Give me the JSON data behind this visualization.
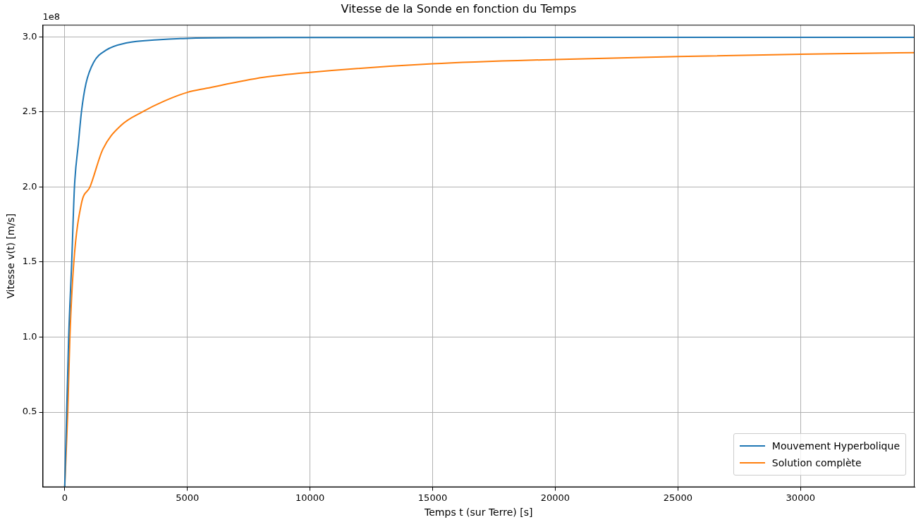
{
  "chart_data": {
    "type": "line",
    "title": "Vitesse de la Sonde en fonction du Temps",
    "xlabel": "Temps t (sur Terre) [s]",
    "ylabel": "Vitesse v(t) [m/s]",
    "annotations": [
      "1e8"
    ],
    "series": [
      {
        "name": "Mouvement Hyperbolique",
        "color": "#1f77b4",
        "x": [
          0,
          161,
          285,
          397,
          558,
          682,
          868,
          1179,
          1675,
          2543,
          3784,
          5000,
          7500,
          10000,
          20000,
          34650
        ],
        "values": [
          0,
          1.0,
          1.5,
          2.0,
          2.29,
          2.5,
          2.69,
          2.83,
          2.91,
          2.96,
          2.98,
          2.99,
          2.994,
          2.995,
          2.996,
          2.996
        ]
      },
      {
        "name": "Solution complète",
        "color": "#ff7f0e",
        "x": [
          0,
          124,
          211,
          372,
          682,
          1030,
          1551,
          2295,
          3164,
          4032,
          5000,
          5780,
          8102,
          10000,
          15000,
          20000,
          25000,
          30000,
          34650
        ],
        "values": [
          0,
          0.5,
          1.0,
          1.5,
          1.89,
          2.0,
          2.25,
          2.41,
          2.5,
          2.57,
          2.63,
          2.657,
          2.73,
          2.763,
          2.82,
          2.849,
          2.869,
          2.884,
          2.895
        ]
      }
    ],
    "xlim": [
      -900,
      34650
    ],
    "ylim": [
      0,
      3.08
    ],
    "xticks": [
      0,
      5000,
      10000,
      15000,
      20000,
      25000,
      30000
    ],
    "yticks": [
      {
        "value": 0.5,
        "label": "0.5"
      },
      {
        "value": 1,
        "label": "1.0"
      },
      {
        "value": 1.5,
        "label": "1.5"
      },
      {
        "value": 2,
        "label": "2.0"
      },
      {
        "value": 2.5,
        "label": "2.5"
      },
      {
        "value": 3,
        "label": "3.0"
      }
    ],
    "grid": true,
    "legend": "bottom right",
    "marker": "none",
    "line_style": "solid"
  }
}
